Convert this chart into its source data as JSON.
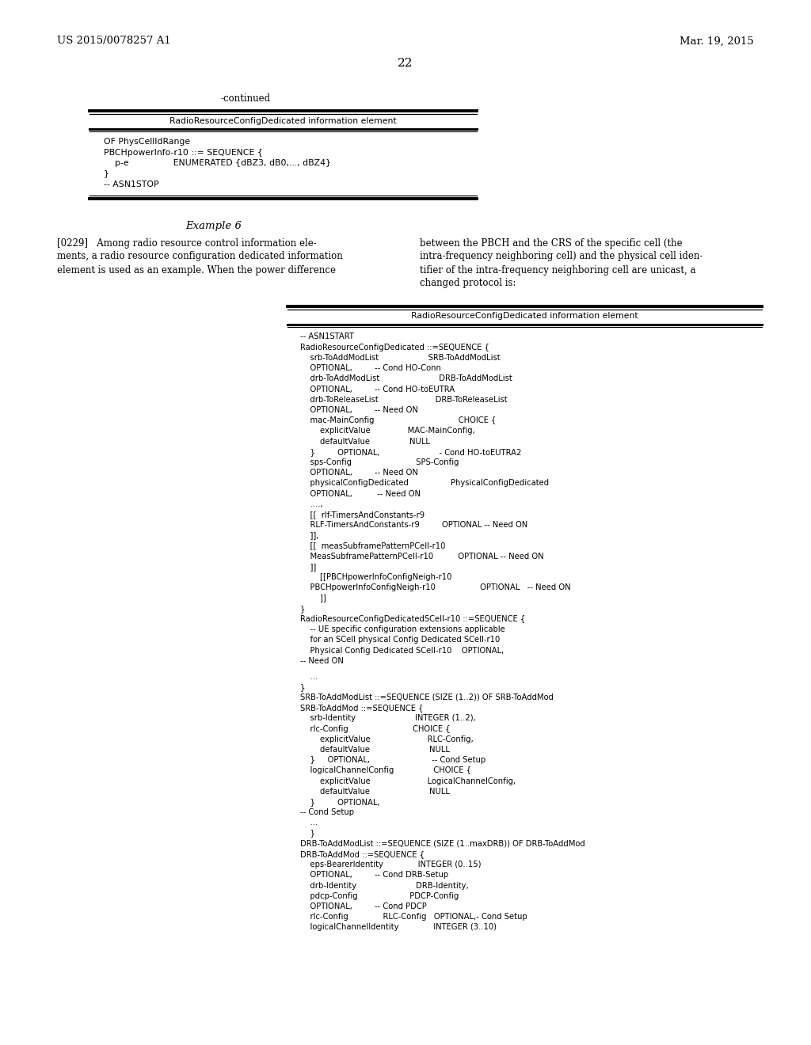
{
  "background_color": "#ffffff",
  "header_left": "US 2015/0078257 A1",
  "header_right": "Mar. 19, 2015",
  "page_number": "22",
  "continued_label": "-continued",
  "table1_title": "RadioResourceConfigDedicated information element",
  "table1_lines": [
    "OF PhysCellIdRange",
    "PBCHpowerInfo-r10 ::= SEQUENCE {",
    "    p-e                ENUMERATED {dBZ3, dB0,..., dBZ4}",
    "}",
    "-- ASN1STOP"
  ],
  "example_heading": "Example 6",
  "left_para_lines": [
    "[0229]   Among radio resource control information ele-",
    "ments, a radio resource configuration dedicated information",
    "element is used as an example. When the power difference"
  ],
  "right_para_lines": [
    "between the PBCH and the CRS of the specific cell (the",
    "intra-frequency neighboring cell) and the physical cell iden-",
    "tifier of the intra-frequency neighboring cell are unicast, a",
    "changed protocol is:"
  ],
  "table2_title": "RadioResourceConfigDedicated information element",
  "table2_lines": [
    "-- ASN1START",
    "RadioResourceConfigDedicated ::=SEQUENCE {",
    "    srb-ToAddModList                    SRB-ToAddModList",
    "    OPTIONAL,         -- Cond HO-Conn",
    "    drb-ToAddModList                        DRB-ToAddModList",
    "    OPTIONAL,         -- Cond HO-toEUTRA",
    "    drb-ToReleaseList                       DRB-ToReleaseList",
    "    OPTIONAL,         -- Need ON",
    "    mac-MainConfig                                  CHOICE {",
    "        explicitValue               MAC-MainConfig,",
    "        defaultValue                NULL",
    "    }         OPTIONAL,                        - Cond HO-toEUTRA2",
    "    sps-Config                          SPS-Config",
    "    OPTIONAL,         -- Need ON",
    "    physicalConfigDedicated                 PhysicalConfigDedicated",
    "    OPTIONAL,          -- Need ON",
    "    ....,",
    "    [[  rlf-TimersAndConstants-r9",
    "    RLF-TimersAndConstants-r9         OPTIONAL -- Need ON",
    "    ]],",
    "    [[  measSubframePatternPCell-r10",
    "    MeasSubframePatternPCell-r10          OPTIONAL -- Need ON",
    "    ]]",
    "        [[PBCHpowerInfoConfigNeigh-r10",
    "    PBCHpowerInfoConfigNeigh-r10                  OPTIONAL   -- Need ON",
    "        ]]",
    "}",
    "RadioResourceConfigDedicatedSCell-r10 ::=SEQUENCE {",
    "    -- UE specific configuration extensions applicable",
    "    for an SCell physical Config Dedicated SCell-r10",
    "    Physical Config Dedicated SCell-r10    OPTIONAL,",
    "-- Need ON",
    "",
    "    ...",
    "}",
    "SRB-ToAddModList ::=SEQUENCE (SIZE (1..2)) OF SRB-ToAddMod",
    "SRB-ToAddMod ::=SEQUENCE {",
    "    srb-Identity                        INTEGER (1..2),",
    "    rlc-Config                          CHOICE {",
    "        explicitValue                       RLC-Config,",
    "        defaultValue                        NULL",
    "    }     OPTIONAL,                         -- Cond Setup",
    "    logicalChannelConfig                CHOICE {",
    "        explicitValue                       LogicalChannelConfig,",
    "        defaultValue                        NULL",
    "    }         OPTIONAL,",
    "-- Cond Setup",
    "    ...",
    "    }",
    "DRB-ToAddModList ::=SEQUENCE (SIZE (1..maxDRB)) OF DRB-ToAddMod",
    "DRB-ToAddMod ::=SEQUENCE {",
    "    eps-BearerIdentity              INTEGER (0..15)",
    "    OPTIONAL,         -- Cond DRB-Setup",
    "    drb-Identity                        DRB-Identity,",
    "    pdcp-Config                     PDCP-Config",
    "    OPTIONAL,         -- Cond PDCP",
    "    rlc-Config              RLC-Config   OPTIONAL,- Cond Setup",
    "    logicalChannelIdentity              INTEGER (3..10)"
  ]
}
